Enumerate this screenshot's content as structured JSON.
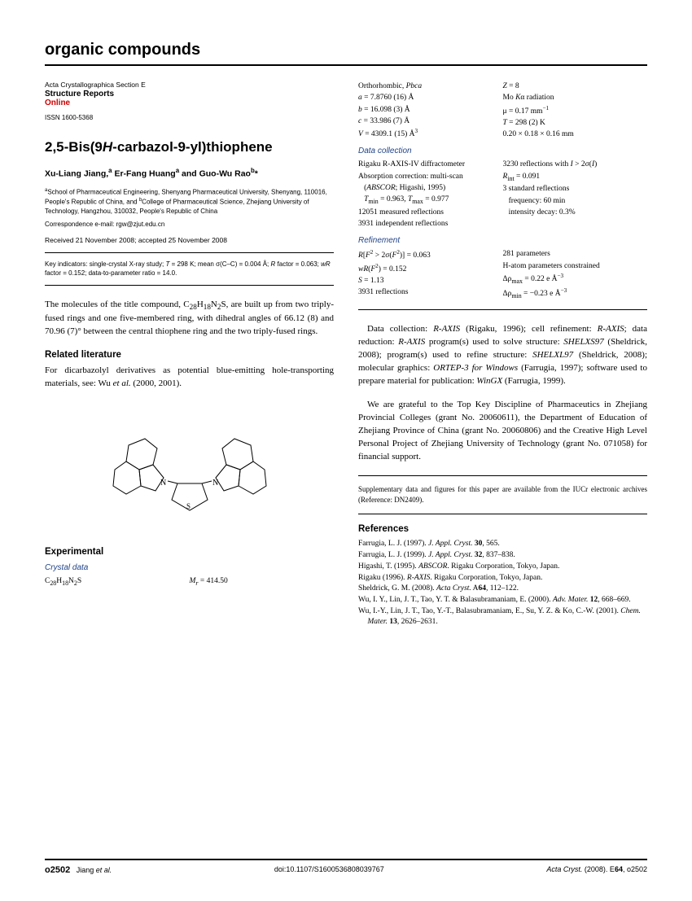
{
  "header": {
    "category": "organic compounds"
  },
  "journal": {
    "section": "Acta Crystallographica Section E",
    "reports": "Structure Reports",
    "online": "Online",
    "issn": "ISSN 1600-5368"
  },
  "title_html": "2,5-Bis(9<i>H</i>-carbazol-9-yl)thiophene",
  "authors_html": "Xu-Liang Jiang,<sup>a</sup> Er-Fang Huang<sup>a</sup> and Guo-Wu Rao<sup>b</sup>*",
  "affiliations_html": "<sup>a</sup>School of Pharmaceutical Engineering, Shenyang Pharmaceutical University, Shenyang, 110016, People's Republic of China, and <sup>b</sup>College of Pharmaceutical Science, Zhejiang University of Technology, Hangzhou, 310032, People's Republic of China",
  "correspondence": "Correspondence e-mail: rgw@zjut.edu.cn",
  "dates": "Received 21 November 2008; accepted 25 November 2008",
  "key_indicators_html": "Key indicators: single-crystal X-ray study; <i>T</i> = 298 K; mean σ(C–C) = 0.004 Å; <i>R</i> factor = 0.063; <i>wR</i> factor = 0.152; data-to-parameter ratio = 14.0.",
  "abstract_html": "The molecules of the title compound, C<sub>28</sub>H<sub>18</sub>N<sub>2</sub>S, are built up from two triply-fused rings and one five-membered ring, with dihedral angles of 66.12 (8) and 70.96 (7)° between the central thiophene ring and the two triply-fused rings.",
  "related_head": "Related literature",
  "related_body_html": "For dicarbazolyl derivatives as potential blue-emitting hole-transporting materials, see: Wu <i>et al.</i> (2000, 2001).",
  "experimental_head": "Experimental",
  "crystal_data_head": "Crystal data",
  "crystal_left_html": "C<sub>28</sub>H<sub>18</sub>N<sub>2</sub>S",
  "crystal_right_html": "<i>M<sub>r</sub></i> = 414.50",
  "crystal2_left_html": "Orthorhombic, <i>Pbca</i><br><i>a</i> = 7.8760 (16) Å<br><i>b</i> = 16.098 (3) Å<br><i>c</i> = 33.986 (7) Å<br><i>V</i> = 4309.1 (15) Å<sup>3</sup>",
  "crystal2_right_html": "<i>Z</i> = 8<br>Mo <i>K</i>α radiation<br>μ = 0.17 mm<sup>−1</sup><br><i>T</i> = 298 (2) K<br>0.20 × 0.18 × 0.16 mm",
  "dc_head": "Data collection",
  "dc_left_html": "Rigaku R-AXIS-IV diffractometer<br>Absorption correction: multi-scan<br>&nbsp;&nbsp;&nbsp;(<i>ABSCOR</i>; Higashi, 1995)<br>&nbsp;&nbsp;&nbsp;<i>T</i><sub>min</sub> = 0.963, <i>T</i><sub>max</sub> = 0.977<br>12051 measured reflections<br>3931 independent reflections",
  "dc_right_html": "3230 reflections with <i>I</i> > 2σ(<i>I</i>)<br><i>R</i><sub>int</sub> = 0.091<br>3 standard reflections<br>&nbsp;&nbsp;&nbsp;frequency: 60 min<br>&nbsp;&nbsp;&nbsp;intensity decay: 0.3%",
  "ref_head": "Refinement",
  "ref_left_html": "<i>R</i>[<i>F</i><sup>2</sup> > 2σ(<i>F</i><sup>2</sup>)] = 0.063<br><i>wR</i>(<i>F</i><sup>2</sup>) = 0.152<br><i>S</i> = 1.13<br>3931 reflections",
  "ref_right_html": "281 parameters<br>H-atom parameters constrained<br>Δρ<sub>max</sub> = 0.22 e Å<sup>−3</sup><br>Δρ<sub>min</sub> = −0.23 e Å<sup>−3</sup>",
  "software_html": "Data collection: <i>R-AXIS</i> (Rigaku, 1996); cell refinement: <i>R-AXIS</i>; data reduction: <i>R-AXIS</i> program(s) used to solve structure: <i>SHELXS97</i> (Sheldrick, 2008); program(s) used to refine structure: <i>SHELXL97</i> (Sheldrick, 2008); molecular graphics: <i>ORTEP-3 for Windows</i> (Farrugia, 1997); software used to prepare material for publication: <i>WinGX</i> (Farrugia, 1999).",
  "acknowledge": "We are grateful to the Top Key Discipline of Pharmaceutics in Zhejiang Provincial Colleges (grant No. 20060611), the Department of Education of Zhejiang Province of China (grant No. 20060806) and the Creative High Level Personal Project of Zhejiang University of Technology (grant No. 071058) for financial support.",
  "supp_note": "Supplementary data and figures for this paper are available from the IUCr electronic archives (Reference: DN2409).",
  "references_head": "References",
  "refs": [
    "Farrugia, L. J. (1997). <i>J. Appl. Cryst.</i> <b>30</b>, 565.",
    "Farrugia, L. J. (1999). <i>J. Appl. Cryst.</i> <b>32</b>, 837–838.",
    "Higashi, T. (1995). <i>ABSCOR</i>. Rigaku Corporation, Tokyo, Japan.",
    "Rigaku (1996). <i>R-AXIS</i>. Rigaku Corporation, Tokyo, Japan.",
    "Sheldrick, G. M. (2008). <i>Acta Cryst.</i> A<b>64</b>, 112–122.",
    "Wu, I. Y., Lin, J. T., Tao, Y. T. & Balasubramaniam, E. (2000). <i>Adv. Mater.</i> <b>12</b>, 668–669.",
    "Wu, I.-Y., Lin, J. T., Tao, Y.-T., Balasubramaniam, E., Su, Y. Z. & Ko, C.-W. (2001). <i>Chem. Mater.</i> <b>13</b>, 2626–2631."
  ],
  "footer": {
    "page": "o2502",
    "citation_html": "Jiang <i>et al.</i>",
    "doi": "doi:10.1107/S1600536808039767",
    "journal_html": "<i>Acta Cryst.</i> (2008). E<b>64</b>, o2502"
  }
}
